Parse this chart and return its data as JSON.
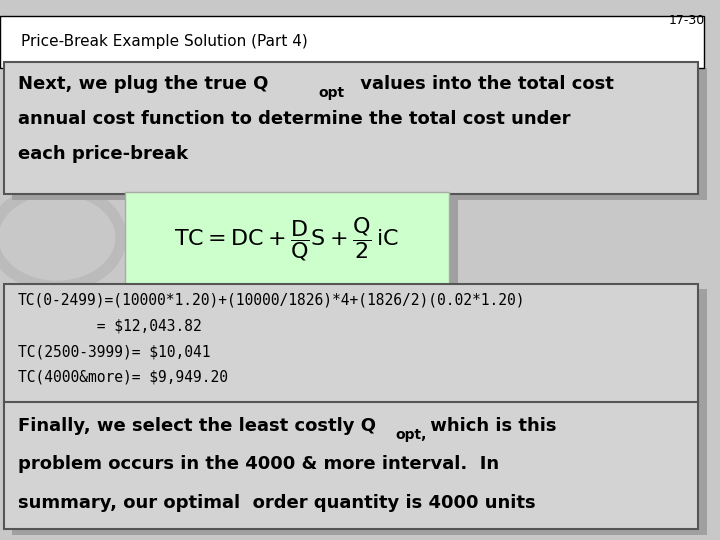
{
  "slide_number": "17-30",
  "title": "Price-Break Example Solution (Part 4)",
  "background_color": "#d3d3d3",
  "slide_bg": "#c8c8c8",
  "box1_text_line1": "Next, we plug the true Q",
  "box1_text_sub": "opt",
  "box1_text_rest1": " values into the total cost",
  "box1_text_line2": "annual cost function to determine the total cost under",
  "box1_text_line3": "each price-break",
  "box1_bg": "#d3d3d3",
  "formula_bg": "#ccffcc",
  "calc_line1": "TC(0-2499)=(10000*1.20)+(10000/1826)*4+(1826/2)(0.02*1.20)",
  "calc_line2": "         = $12,043.82",
  "calc_line3": "TC(2500-3999)= $10,041",
  "calc_line4": "TC(4000&more)= $9,949.20",
  "calc_bg": "#d3d3d3",
  "box3_text_line1": "Finally, we select the least costly Q",
  "box3_text_sub": "opt,",
  "box3_text_rest1": " which is this",
  "box3_text_line2": "problem occurs in the 4000 & more interval.  In",
  "box3_text_line3": "summary, our optimal  order quantity is 4000 units",
  "box3_bg": "#d3d3d3",
  "title_fontsize": 11,
  "body_fontsize": 13,
  "calc_fontsize": 10.5,
  "slide_num_fontsize": 9
}
